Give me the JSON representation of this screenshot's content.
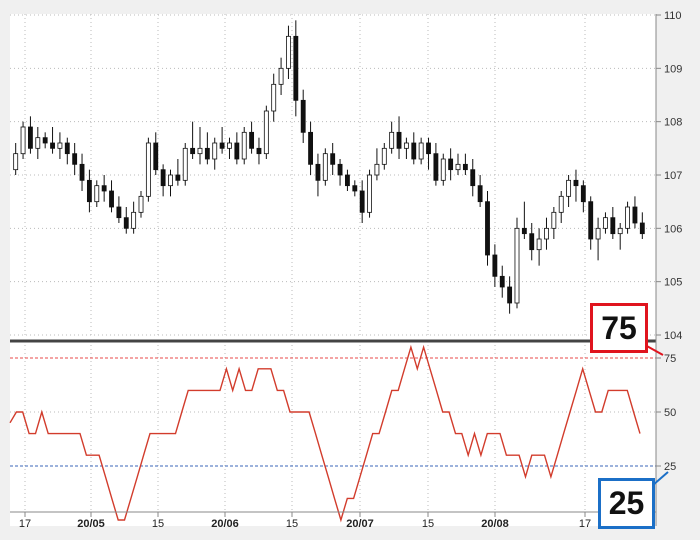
{
  "chart_data": [
    {
      "type": "candlestick",
      "title": "",
      "ylim": [
        104,
        110
      ],
      "yticks": [
        "110",
        "109",
        "108",
        "107",
        "106",
        "105",
        "104"
      ],
      "grid": true,
      "colors": {
        "up": "#ffffff",
        "down": "#111111",
        "wick": "#111111"
      },
      "ohlc": [
        [
          107.1,
          107.6,
          107.0,
          107.4
        ],
        [
          107.4,
          108.0,
          107.3,
          107.9
        ],
        [
          107.9,
          108.1,
          107.4,
          107.5
        ],
        [
          107.5,
          107.9,
          107.3,
          107.7
        ],
        [
          107.7,
          107.8,
          107.5,
          107.6
        ],
        [
          107.6,
          107.9,
          107.4,
          107.5
        ],
        [
          107.5,
          107.8,
          107.3,
          107.6
        ],
        [
          107.6,
          107.7,
          107.2,
          107.4
        ],
        [
          107.4,
          107.6,
          107.0,
          107.2
        ],
        [
          107.2,
          107.4,
          106.7,
          106.9
        ],
        [
          106.9,
          107.1,
          106.3,
          106.5
        ],
        [
          106.5,
          106.9,
          106.4,
          106.8
        ],
        [
          106.8,
          107.0,
          106.5,
          106.7
        ],
        [
          106.7,
          106.9,
          106.3,
          106.4
        ],
        [
          106.4,
          106.6,
          106.1,
          106.2
        ],
        [
          106.2,
          106.4,
          105.9,
          106.0
        ],
        [
          106.0,
          106.5,
          105.9,
          106.3
        ],
        [
          106.3,
          106.7,
          106.2,
          106.6
        ],
        [
          106.6,
          107.7,
          106.5,
          107.6
        ],
        [
          107.6,
          107.8,
          107.0,
          107.1
        ],
        [
          107.1,
          107.2,
          106.6,
          106.8
        ],
        [
          106.8,
          107.1,
          106.6,
          107.0
        ],
        [
          107.0,
          107.3,
          106.8,
          106.9
        ],
        [
          106.9,
          107.6,
          106.8,
          107.5
        ],
        [
          107.5,
          108.0,
          107.3,
          107.4
        ],
        [
          107.4,
          107.9,
          107.2,
          107.5
        ],
        [
          107.5,
          107.8,
          107.2,
          107.3
        ],
        [
          107.3,
          107.7,
          107.1,
          107.6
        ],
        [
          107.6,
          107.9,
          107.4,
          107.5
        ],
        [
          107.5,
          107.7,
          107.3,
          107.6
        ],
        [
          107.6,
          107.8,
          107.2,
          107.3
        ],
        [
          107.3,
          107.9,
          107.2,
          107.8
        ],
        [
          107.8,
          108.0,
          107.4,
          107.5
        ],
        [
          107.5,
          107.7,
          107.2,
          107.4
        ],
        [
          107.4,
          108.3,
          107.3,
          108.2
        ],
        [
          108.2,
          108.9,
          108.0,
          108.7
        ],
        [
          108.7,
          109.2,
          108.5,
          109.0
        ],
        [
          109.0,
          109.8,
          108.8,
          109.6
        ],
        [
          109.6,
          109.9,
          108.1,
          108.4
        ],
        [
          108.4,
          108.6,
          107.6,
          107.8
        ],
        [
          107.8,
          108.0,
          107.0,
          107.2
        ],
        [
          107.2,
          107.4,
          106.6,
          106.9
        ],
        [
          106.9,
          107.5,
          106.8,
          107.4
        ],
        [
          107.4,
          107.6,
          107.0,
          107.2
        ],
        [
          107.2,
          107.3,
          106.8,
          107.0
        ],
        [
          107.0,
          107.1,
          106.7,
          106.8
        ],
        [
          106.8,
          106.9,
          106.6,
          106.7
        ],
        [
          106.7,
          106.9,
          106.1,
          106.3
        ],
        [
          106.3,
          107.1,
          106.2,
          107.0
        ],
        [
          107.0,
          107.5,
          106.9,
          107.2
        ],
        [
          107.2,
          107.6,
          107.1,
          107.5
        ],
        [
          107.5,
          108.0,
          107.4,
          107.8
        ],
        [
          107.8,
          108.1,
          107.3,
          107.5
        ],
        [
          107.5,
          107.7,
          107.3,
          107.6
        ],
        [
          107.6,
          107.8,
          107.2,
          107.3
        ],
        [
          107.3,
          107.7,
          107.2,
          107.6
        ],
        [
          107.6,
          107.7,
          107.1,
          107.4
        ],
        [
          107.4,
          107.6,
          106.8,
          106.9
        ],
        [
          106.9,
          107.4,
          106.8,
          107.3
        ],
        [
          107.3,
          107.5,
          106.9,
          107.1
        ],
        [
          107.1,
          107.4,
          107.0,
          107.2
        ],
        [
          107.2,
          107.4,
          107.0,
          107.1
        ],
        [
          107.1,
          107.3,
          106.6,
          106.8
        ],
        [
          106.8,
          107.0,
          106.4,
          106.5
        ],
        [
          106.5,
          106.7,
          105.3,
          105.5
        ],
        [
          105.5,
          105.7,
          104.9,
          105.1
        ],
        [
          105.1,
          105.3,
          104.7,
          104.9
        ],
        [
          104.9,
          105.1,
          104.4,
          104.6
        ],
        [
          104.6,
          106.2,
          104.5,
          106.0
        ],
        [
          106.0,
          106.5,
          105.8,
          105.9
        ],
        [
          105.9,
          106.1,
          105.4,
          105.6
        ],
        [
          105.6,
          106.0,
          105.3,
          105.8
        ],
        [
          105.8,
          106.2,
          105.6,
          106.0
        ],
        [
          106.0,
          106.4,
          105.8,
          106.3
        ],
        [
          106.3,
          106.7,
          106.1,
          106.6
        ],
        [
          106.6,
          107.0,
          106.4,
          106.9
        ],
        [
          106.9,
          107.1,
          106.5,
          106.8
        ],
        [
          106.8,
          106.9,
          106.3,
          106.5
        ],
        [
          106.5,
          106.6,
          105.6,
          105.8
        ],
        [
          105.8,
          106.2,
          105.4,
          106.0
        ],
        [
          106.0,
          106.3,
          105.9,
          106.2
        ],
        [
          106.2,
          106.4,
          105.8,
          105.9
        ],
        [
          105.9,
          106.1,
          105.6,
          106.0
        ],
        [
          106.0,
          106.5,
          105.9,
          106.4
        ],
        [
          106.4,
          106.6,
          106.0,
          106.1
        ],
        [
          106.1,
          106.3,
          105.8,
          105.9
        ]
      ]
    },
    {
      "type": "line",
      "title": "",
      "ylim": [
        0,
        100
      ],
      "yticks": [
        "75",
        "50",
        "25"
      ],
      "reference_lines": [
        {
          "value": 75,
          "color": "#e84a4a"
        },
        {
          "value": 25,
          "color": "#3a66b8"
        }
      ],
      "x_labels": [
        "17",
        "20/05",
        "15",
        "20/06",
        "15",
        "20/07",
        "15",
        "20/08",
        "17"
      ],
      "series": [
        {
          "color": "#d23c2c",
          "values": [
            45,
            50,
            50,
            40,
            40,
            50,
            40,
            40,
            40,
            40,
            40,
            40,
            30,
            30,
            30,
            20,
            10,
            0,
            0,
            10,
            20,
            30,
            40,
            40,
            40,
            40,
            40,
            50,
            60,
            60,
            60,
            60,
            60,
            60,
            70,
            60,
            70,
            60,
            60,
            70,
            70,
            70,
            60,
            60,
            50,
            50,
            50,
            50,
            40,
            30,
            20,
            10,
            0,
            10,
            10,
            20,
            30,
            40,
            40,
            50,
            60,
            60,
            70,
            80,
            70,
            80,
            70,
            60,
            50,
            50,
            40,
            40,
            30,
            40,
            30,
            40,
            40,
            40,
            30,
            30,
            30,
            20,
            30,
            30,
            30,
            20,
            30,
            40,
            50,
            60,
            70,
            60,
            50,
            50,
            60,
            60,
            60,
            60,
            50,
            40
          ]
        }
      ]
    }
  ],
  "callouts": {
    "upper": {
      "label": "75",
      "border_color": "#e0141e"
    },
    "lower": {
      "label": "25",
      "border_color": "#1b6fc7"
    }
  }
}
